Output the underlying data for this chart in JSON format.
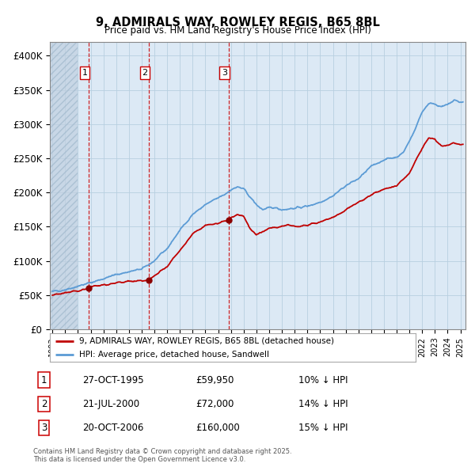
{
  "title_line1": "9, ADMIRALS WAY, ROWLEY REGIS, B65 8BL",
  "title_line2": "Price paid vs. HM Land Registry's House Price Index (HPI)",
  "ylim": [
    0,
    420000
  ],
  "yticks": [
    0,
    50000,
    100000,
    150000,
    200000,
    250000,
    300000,
    350000,
    400000
  ],
  "ytick_labels": [
    "£0",
    "£50K",
    "£100K",
    "£150K",
    "£200K",
    "£250K",
    "£300K",
    "£350K",
    "£400K"
  ],
  "sale_year_floats": [
    1995.831,
    2000.554,
    2006.804
  ],
  "sale_prices": [
    59950,
    72000,
    160000
  ],
  "sale_labels": [
    "1",
    "2",
    "3"
  ],
  "hpi_color": "#5b9bd5",
  "hpi_fill_color": "#d6e8f7",
  "price_color": "#c00000",
  "chart_bg_color": "#dce9f5",
  "grid_color": "#b8cfe0",
  "hatch_color": "#c0d0e0",
  "legend_entries": [
    "9, ADMIRALS WAY, ROWLEY REGIS, B65 8BL (detached house)",
    "HPI: Average price, detached house, Sandwell"
  ],
  "table_rows": [
    [
      "1",
      "27-OCT-1995",
      "£59,950",
      "10% ↓ HPI"
    ],
    [
      "2",
      "21-JUL-2000",
      "£72,000",
      "14% ↓ HPI"
    ],
    [
      "3",
      "20-OCT-2006",
      "£160,000",
      "15% ↓ HPI"
    ]
  ],
  "footnote": "Contains HM Land Registry data © Crown copyright and database right 2025.\nThis data is licensed under the Open Government Licence v3.0.",
  "hpi_key_years": [
    1993,
    1994,
    1995,
    1996,
    1997,
    1998,
    1999,
    2000,
    2001,
    2002,
    2003,
    2004,
    2005,
    2006,
    2006.5,
    2007.0,
    2007.5,
    2008,
    2009,
    2009.5,
    2010,
    2010.5,
    2011,
    2011.5,
    2012,
    2013,
    2014,
    2015,
    2016,
    2017,
    2018,
    2019,
    2020,
    2020.5,
    2021,
    2021.5,
    2022,
    2022.5,
    2023,
    2023.5,
    2024,
    2024.5,
    2025
  ],
  "hpi_key_vals": [
    55000,
    58000,
    63000,
    68000,
    74000,
    80000,
    84000,
    88000,
    100000,
    118000,
    145000,
    168000,
    182000,
    192000,
    197000,
    204000,
    208000,
    205000,
    182000,
    175000,
    177000,
    178000,
    175000,
    176000,
    177000,
    180000,
    186000,
    195000,
    210000,
    220000,
    238000,
    248000,
    252000,
    258000,
    275000,
    295000,
    318000,
    330000,
    330000,
    325000,
    328000,
    335000,
    332000
  ],
  "price_key_years": [
    1993,
    1995.0,
    1995.831,
    1996,
    1997,
    1998,
    1999,
    2000.0,
    2000.554,
    2001,
    2002,
    2003,
    2004,
    2005,
    2006.0,
    2006.804,
    2007.5,
    2008.0,
    2008.5,
    2009,
    2009.5,
    2010,
    2010.5,
    2011,
    2011.5,
    2012,
    2013,
    2014,
    2015,
    2016,
    2017,
    2018,
    2019,
    2020,
    2021,
    2022,
    2022.5,
    2023,
    2023.5,
    2024,
    2024.5,
    2025
  ],
  "price_key_vals": [
    50000,
    56000,
    59950,
    62000,
    65000,
    68000,
    70000,
    70000,
    72000,
    78000,
    92000,
    115000,
    140000,
    152000,
    155000,
    160000,
    168000,
    165000,
    148000,
    138000,
    143000,
    148000,
    148000,
    150000,
    152000,
    150000,
    152000,
    157000,
    163000,
    175000,
    185000,
    197000,
    205000,
    210000,
    228000,
    265000,
    280000,
    278000,
    268000,
    270000,
    272000,
    270000
  ]
}
